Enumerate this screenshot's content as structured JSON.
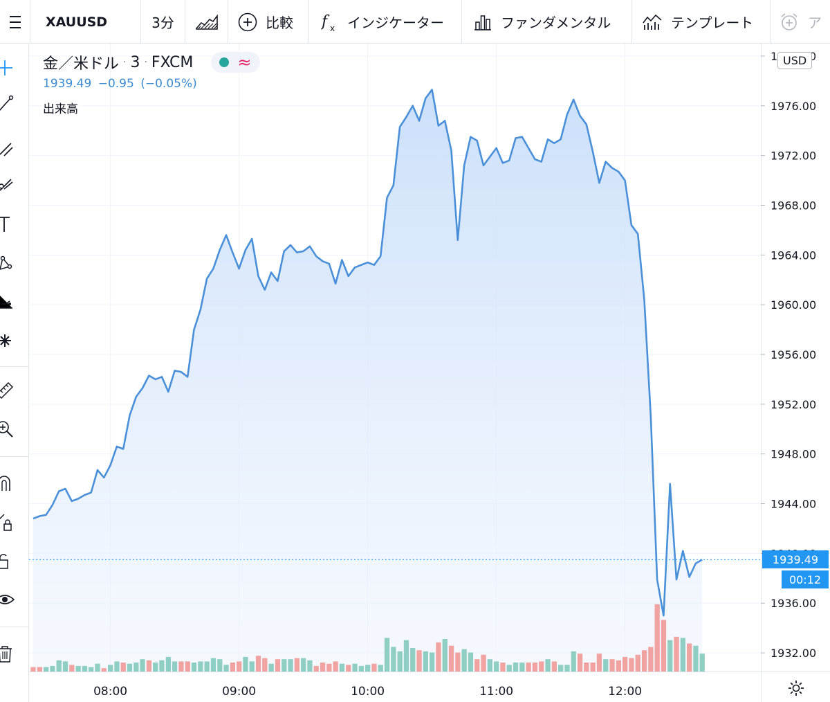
{
  "toolbar": {
    "symbol": "XAUUSD",
    "interval": "3分",
    "compare": "比較",
    "indicators": "インジケーター",
    "fundamentals": "ファンダメンタル",
    "templates": "テンプレート",
    "alert_partial": "ア"
  },
  "legend": {
    "title": "金／米ドル",
    "interval": "3",
    "exchange": "FXCM",
    "price": "1939.49",
    "change": "−0.95",
    "change_pct": "(−0.05%)",
    "volume_label": "出来高"
  },
  "currency": "USD",
  "last_price_label": "1939.49",
  "countdown": "00:12",
  "colors": {
    "line": "#4a90d9",
    "area_top": "#c9defa",
    "up_volume": "#8fcfc3",
    "down_volume": "#f0a3a0",
    "price_tag": "#2196f3"
  },
  "chart_data": {
    "type": "area",
    "symbol": "XAUUSD",
    "price_ylim": [
      1930.5,
      1981
    ],
    "y_ticks": [
      "1932.00",
      "1936.00",
      "1940.00",
      "1944.00",
      "1948.00",
      "1952.00",
      "1956.00",
      "1960.00",
      "1964.00",
      "1968.00",
      "1972.00",
      "1976.00",
      "1980.00"
    ],
    "x_ticks": [
      "08:00",
      "09:00",
      "10:00",
      "11:00",
      "12:00"
    ],
    "time_start": "07:24",
    "bar_minutes": 3,
    "prices": [
      1942.8,
      1943.0,
      1943.1,
      1943.9,
      1945.0,
      1945.2,
      1944.2,
      1944.4,
      1944.7,
      1944.9,
      1946.7,
      1946.1,
      1947.1,
      1948.6,
      1948.4,
      1951.1,
      1952.6,
      1953.3,
      1954.3,
      1954.0,
      1954.2,
      1953.0,
      1954.7,
      1954.6,
      1954.2,
      1958.0,
      1959.6,
      1962.1,
      1962.9,
      1964.4,
      1965.6,
      1964.2,
      1962.9,
      1964.4,
      1965.3,
      1962.3,
      1961.2,
      1962.6,
      1961.9,
      1964.3,
      1964.8,
      1964.2,
      1964.3,
      1964.7,
      1963.9,
      1963.5,
      1963.3,
      1961.7,
      1963.6,
      1962.3,
      1963.0,
      1963.2,
      1963.4,
      1963.2,
      1963.9,
      1968.6,
      1969.6,
      1974.3,
      1975.1,
      1976.0,
      1974.8,
      1976.6,
      1977.3,
      1974.4,
      1974.8,
      1972.4,
      1965.2,
      1971.2,
      1973.5,
      1973.2,
      1971.2,
      1971.9,
      1972.6,
      1971.4,
      1971.6,
      1973.4,
      1973.5,
      1972.6,
      1971.7,
      1971.5,
      1973.3,
      1973.0,
      1973.3,
      1975.3,
      1976.5,
      1975.2,
      1974.5,
      1972.3,
      1969.8,
      1971.5,
      1971.0,
      1970.7,
      1970.0,
      1966.4,
      1965.7,
      1960.4,
      1951.1,
      1937.9,
      1935.0,
      1945.6,
      1937.9,
      1940.2,
      1938.1,
      1939.2,
      1939.5
    ],
    "volumes": [
      4,
      4,
      4,
      5,
      10,
      9,
      6,
      5,
      5,
      4,
      7,
      3,
      6,
      9,
      8,
      7,
      8,
      11,
      10,
      8,
      10,
      13,
      9,
      9,
      9,
      8,
      9,
      9,
      12,
      11,
      6,
      8,
      9,
      13,
      9,
      14,
      12,
      7,
      11,
      11,
      11,
      12,
      12,
      10,
      5,
      8,
      7,
      9,
      7,
      6,
      7,
      5,
      6,
      7,
      6,
      30,
      22,
      18,
      28,
      21,
      19,
      18,
      17,
      26,
      29,
      23,
      17,
      20,
      17,
      11,
      15,
      11,
      9,
      8,
      6,
      8,
      8,
      8,
      8,
      9,
      11,
      9,
      6,
      6,
      18,
      16,
      8,
      8,
      16,
      11,
      11,
      10,
      13,
      12,
      15,
      19,
      22,
      60,
      46,
      28,
      31,
      30,
      25,
      23,
      16
    ],
    "volume_ylim": [
      0,
      100
    ],
    "volume_direction": [
      "down",
      "down",
      "up",
      "up",
      "up",
      "up",
      "down",
      "up",
      "up",
      "up",
      "up",
      "down",
      "up",
      "up",
      "down",
      "up",
      "up",
      "up",
      "down",
      "up",
      "up",
      "up",
      "up",
      "down",
      "down",
      "up",
      "up",
      "up",
      "up",
      "up",
      "up",
      "down",
      "down",
      "up",
      "up",
      "down",
      "down",
      "up",
      "down",
      "up",
      "up",
      "down",
      "up",
      "up",
      "down",
      "down",
      "down",
      "down",
      "up",
      "down",
      "up",
      "up",
      "up",
      "down",
      "up",
      "up",
      "up",
      "up",
      "up",
      "up",
      "down",
      "up",
      "up",
      "down",
      "up",
      "down",
      "down",
      "up",
      "up",
      "down",
      "down",
      "up",
      "up",
      "down",
      "up",
      "up",
      "up",
      "down",
      "down",
      "down",
      "up",
      "down",
      "up",
      "up",
      "up",
      "down",
      "down",
      "down",
      "down",
      "up",
      "down",
      "down",
      "down",
      "down",
      "down",
      "down",
      "down",
      "down",
      "down",
      "up",
      "down",
      "up",
      "down",
      "up",
      "up"
    ]
  }
}
